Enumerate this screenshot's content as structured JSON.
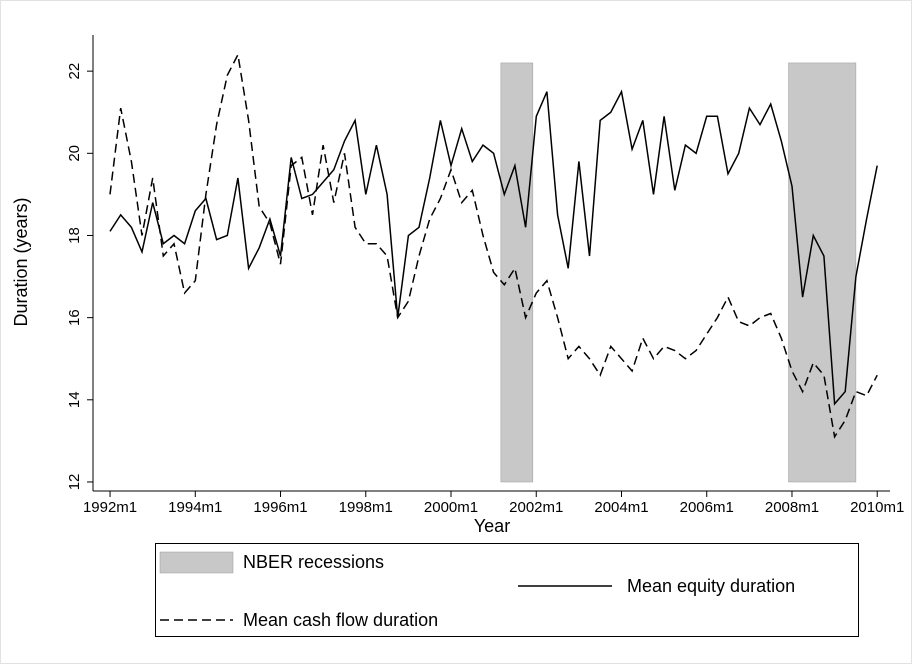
{
  "chart_data": {
    "type": "line",
    "x_label": "Year",
    "y_label": "Duration (years)",
    "x": [
      1992.0,
      1992.25,
      1992.5,
      1992.75,
      1993.0,
      1993.25,
      1993.5,
      1993.75,
      1994.0,
      1994.25,
      1994.5,
      1994.75,
      1995.0,
      1995.25,
      1995.5,
      1995.75,
      1996.0,
      1996.25,
      1996.5,
      1996.75,
      1997.0,
      1997.25,
      1997.5,
      1997.75,
      1998.0,
      1998.25,
      1998.5,
      1998.75,
      1999.0,
      1999.25,
      1999.5,
      1999.75,
      2000.0,
      2000.25,
      2000.5,
      2000.75,
      2001.0,
      2001.25,
      2001.5,
      2001.75,
      2002.0,
      2002.25,
      2002.5,
      2002.75,
      2003.0,
      2003.25,
      2003.5,
      2003.75,
      2004.0,
      2004.25,
      2004.5,
      2004.75,
      2005.0,
      2005.25,
      2005.5,
      2005.75,
      2006.0,
      2006.25,
      2006.5,
      2006.75,
      2007.0,
      2007.25,
      2007.5,
      2007.75,
      2008.0,
      2008.25,
      2008.5,
      2008.75,
      2009.0,
      2009.25,
      2009.5,
      2009.75,
      2010.0
    ],
    "series": [
      {
        "name": "Mean equity duration",
        "color": "#000000",
        "dash": "solid",
        "values": [
          18.1,
          18.5,
          18.2,
          17.6,
          18.8,
          17.8,
          18.0,
          17.8,
          18.6,
          18.9,
          17.9,
          18.0,
          19.4,
          17.2,
          17.7,
          18.4,
          17.5,
          19.9,
          18.9,
          19.0,
          19.3,
          19.6,
          20.3,
          20.8,
          19.0,
          20.2,
          19.0,
          16.0,
          18.0,
          18.2,
          19.4,
          20.8,
          19.7,
          20.6,
          19.8,
          20.2,
          20.0,
          19.0,
          19.7,
          18.2,
          20.9,
          21.5,
          18.5,
          17.2,
          19.8,
          17.5,
          20.8,
          21.0,
          21.5,
          20.1,
          20.8,
          19.0,
          20.9,
          19.1,
          20.2,
          20.0,
          20.9,
          20.9,
          19.5,
          20.0,
          21.1,
          20.7,
          21.2,
          20.3,
          19.2,
          16.5,
          18.0,
          17.5,
          13.9,
          14.2,
          17.0,
          18.4,
          19.7
        ]
      },
      {
        "name": "Mean cash flow duration",
        "color": "#000000",
        "dash": "dashed",
        "values": [
          19.0,
          21.1,
          19.8,
          18.0,
          19.4,
          17.5,
          17.8,
          16.6,
          16.9,
          19.0,
          20.7,
          21.9,
          22.4,
          20.8,
          18.7,
          18.3,
          17.3,
          19.7,
          19.9,
          18.5,
          20.2,
          18.8,
          20.0,
          18.2,
          17.8,
          17.8,
          17.5,
          16.0,
          16.4,
          17.5,
          18.4,
          18.9,
          19.6,
          18.8,
          19.1,
          18.0,
          17.1,
          16.8,
          17.2,
          16.0,
          16.6,
          16.9,
          16.0,
          15.0,
          15.3,
          15.0,
          14.6,
          15.3,
          15.0,
          14.7,
          15.5,
          15.0,
          15.3,
          15.2,
          15.0,
          15.2,
          15.6,
          16.0,
          16.5,
          15.9,
          15.8,
          16.0,
          16.1,
          15.5,
          14.7,
          14.2,
          14.9,
          14.6,
          13.1,
          13.5,
          14.2,
          14.1,
          14.6
        ]
      }
    ],
    "recessions": {
      "name": "NBER recessions",
      "color": "#c8c8c8",
      "periods": [
        {
          "start": 2001.17,
          "end": 2001.92
        },
        {
          "start": 2007.92,
          "end": 2009.5
        }
      ]
    },
    "xlim": [
      1991.6,
      2010.3
    ],
    "ylim": [
      11.78,
      22.88
    ],
    "xticks": [
      {
        "value": 1992,
        "label": "1992m1"
      },
      {
        "value": 1994,
        "label": "1994m1"
      },
      {
        "value": 1996,
        "label": "1996m1"
      },
      {
        "value": 1998,
        "label": "1998m1"
      },
      {
        "value": 2000,
        "label": "2000m1"
      },
      {
        "value": 2002,
        "label": "2002m1"
      },
      {
        "value": 2004,
        "label": "2004m1"
      },
      {
        "value": 2006,
        "label": "2006m1"
      },
      {
        "value": 2008,
        "label": "2008m1"
      },
      {
        "value": 2010,
        "label": "2010m1"
      }
    ],
    "yticks": [
      12,
      14,
      16,
      18,
      20,
      22
    ],
    "grid": false,
    "legend": "bottom"
  }
}
